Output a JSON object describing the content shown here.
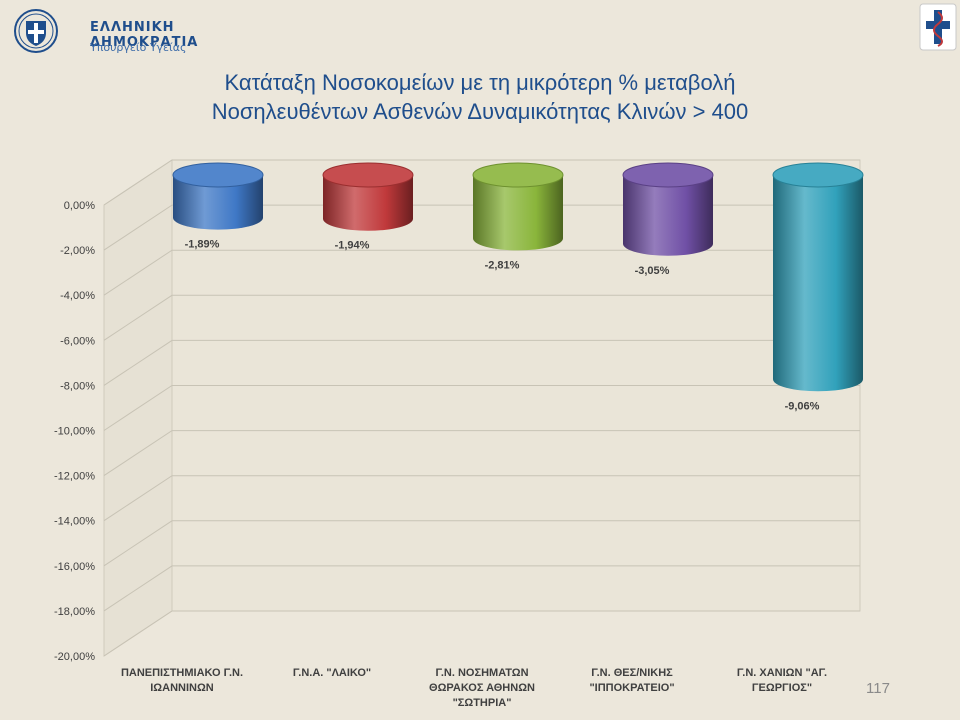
{
  "header": {
    "government": "ΕΛΛΗΝΙΚΗ ΔΗΜΟΚΡΑΤΙΑ",
    "ministry": "Υπουργείο Υγείας"
  },
  "slide": {
    "title_line1": "Κατάταξη Νοσοκομείων με τη μικρότερη % μεταβολή",
    "title_line2": "Νοσηλευθέντων Ασθενών Δυναμικότητας Κλινών > 400",
    "page_number": "117"
  },
  "chart_data": {
    "type": "bar",
    "title": "",
    "xlabel": "",
    "ylabel": "",
    "ylim": [
      -20,
      0
    ],
    "grid": true,
    "legend": "none",
    "y_ticks": [
      "0,00%",
      "-2,00%",
      "-4,00%",
      "-6,00%",
      "-8,00%",
      "-10,00%",
      "-12,00%",
      "-14,00%",
      "-16,00%",
      "-18,00%",
      "-20,00%"
    ],
    "categories": [
      [
        "ΠΑΝΕΠΙΣΤΗΜΙΑΚΟ Γ.Ν.",
        "ΙΩΑΝΝΙΝΩΝ"
      ],
      [
        "Γ.Ν.Α. \"ΛΑΙΚΟ\""
      ],
      [
        "Γ.Ν. ΝΟΣΗΜΑΤΩΝ",
        "ΘΩΡΑΚΟΣ ΑΘΗΝΩΝ",
        "\"ΣΩΤΗΡΙΑ\""
      ],
      [
        "Γ.Ν. ΘΕΣ/ΝΙΚΗΣ",
        "\"ΙΠΠΟΚΡΑΤΕΙΟ\""
      ],
      [
        "Γ.Ν. ΧΑΝΙΩΝ \"ΑΓ.",
        "ΓΕΩΡΓΙΟΣ\""
      ]
    ],
    "values": [
      -1.89,
      -1.94,
      -2.81,
      -3.05,
      -9.06
    ],
    "data_labels": [
      "-1,89%",
      "-1,94%",
      "-2,81%",
      "-3,05%",
      "-9,06%"
    ],
    "colors": [
      "#3f78c6",
      "#c0393b",
      "#8ab53b",
      "#7050a6",
      "#31a1bb"
    ]
  }
}
